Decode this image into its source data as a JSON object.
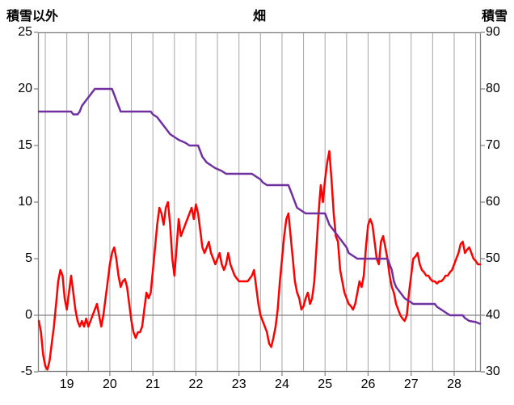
{
  "title": "畑",
  "left_axis": {
    "title": "積雪以外",
    "min": -5,
    "max": 25,
    "ticks": [
      25,
      20,
      15,
      10,
      5,
      0,
      -5
    ]
  },
  "right_axis": {
    "title": "積雪",
    "min": 30,
    "max": 90,
    "ticks": [
      90,
      80,
      70,
      60,
      50,
      40,
      30
    ]
  },
  "x_axis": {
    "min": 18.33,
    "max": 28.62,
    "grid_step": 0.5,
    "labels": [
      "19",
      "20",
      "21",
      "22",
      "23",
      "24",
      "25",
      "26",
      "27",
      "28"
    ],
    "label_values": [
      19,
      20,
      21,
      22,
      23,
      24,
      25,
      26,
      27,
      28
    ]
  },
  "colors": {
    "grid": "#a6a6a6",
    "border": "#808080",
    "zero_line": "#808080",
    "red_series": "#ff0000",
    "purple_series": "#7030a0"
  },
  "chart_data": {
    "type": "line",
    "title": "畑",
    "left_ylabel": "積雪以外",
    "right_ylabel": "積雪",
    "left_ylim": [
      -5,
      25
    ],
    "right_ylim": [
      30,
      90
    ],
    "xlim": [
      18.33,
      28.62
    ],
    "grid": "vertical-half-day",
    "legend": "none",
    "series": [
      {
        "name": "積雪以外",
        "axis": "left",
        "color": "#ff0000",
        "width": 2.5,
        "points": [
          [
            18.35,
            -0.5
          ],
          [
            18.4,
            -1.5
          ],
          [
            18.45,
            -3.5
          ],
          [
            18.5,
            -4.5
          ],
          [
            18.55,
            -4.8
          ],
          [
            18.6,
            -4
          ],
          [
            18.65,
            -2.5
          ],
          [
            18.7,
            -1
          ],
          [
            18.75,
            1
          ],
          [
            18.8,
            3
          ],
          [
            18.85,
            4
          ],
          [
            18.9,
            3.5
          ],
          [
            18.95,
            1.5
          ],
          [
            19.0,
            0.5
          ],
          [
            19.05,
            2
          ],
          [
            19.1,
            3.5
          ],
          [
            19.15,
            2
          ],
          [
            19.2,
            0.5
          ],
          [
            19.25,
            -0.5
          ],
          [
            19.3,
            -1
          ],
          [
            19.35,
            -0.5
          ],
          [
            19.4,
            -1
          ],
          [
            19.45,
            -0.3
          ],
          [
            19.5,
            -1
          ],
          [
            19.55,
            -0.5
          ],
          [
            19.6,
            0
          ],
          [
            19.65,
            0.5
          ],
          [
            19.7,
            1
          ],
          [
            19.75,
            0
          ],
          [
            19.8,
            -1
          ],
          [
            19.85,
            0
          ],
          [
            19.9,
            1.5
          ],
          [
            19.95,
            3
          ],
          [
            20.0,
            4.5
          ],
          [
            20.05,
            5.5
          ],
          [
            20.1,
            6
          ],
          [
            20.15,
            5
          ],
          [
            20.2,
            3.5
          ],
          [
            20.25,
            2.5
          ],
          [
            20.3,
            3
          ],
          [
            20.35,
            3.2
          ],
          [
            20.4,
            2.5
          ],
          [
            20.45,
            1
          ],
          [
            20.5,
            -0.5
          ],
          [
            20.55,
            -1.5
          ],
          [
            20.6,
            -2
          ],
          [
            20.65,
            -1.5
          ],
          [
            20.7,
            -1.5
          ],
          [
            20.75,
            -1
          ],
          [
            20.8,
            0.5
          ],
          [
            20.85,
            2
          ],
          [
            20.9,
            1.5
          ],
          [
            20.95,
            2
          ],
          [
            21.0,
            4
          ],
          [
            21.05,
            6
          ],
          [
            21.1,
            8
          ],
          [
            21.15,
            9.5
          ],
          [
            21.2,
            9
          ],
          [
            21.25,
            8
          ],
          [
            21.3,
            9.5
          ],
          [
            21.35,
            10
          ],
          [
            21.4,
            8
          ],
          [
            21.45,
            5
          ],
          [
            21.5,
            3.5
          ],
          [
            21.55,
            6
          ],
          [
            21.6,
            8.5
          ],
          [
            21.65,
            7
          ],
          [
            21.7,
            7.5
          ],
          [
            21.75,
            8
          ],
          [
            21.8,
            8.5
          ],
          [
            21.85,
            9
          ],
          [
            21.9,
            9.5
          ],
          [
            21.95,
            8.5
          ],
          [
            22.0,
            9.8
          ],
          [
            22.05,
            9
          ],
          [
            22.1,
            7.5
          ],
          [
            22.15,
            6
          ],
          [
            22.2,
            5.5
          ],
          [
            22.25,
            6
          ],
          [
            22.3,
            6.5
          ],
          [
            22.35,
            5.5
          ],
          [
            22.4,
            5
          ],
          [
            22.45,
            4.5
          ],
          [
            22.5,
            5
          ],
          [
            22.55,
            5.5
          ],
          [
            22.6,
            4.5
          ],
          [
            22.65,
            4
          ],
          [
            22.7,
            4.5
          ],
          [
            22.75,
            5.5
          ],
          [
            22.8,
            4.5
          ],
          [
            22.85,
            4
          ],
          [
            22.9,
            3.5
          ],
          [
            23.0,
            3
          ],
          [
            23.1,
            3
          ],
          [
            23.2,
            3
          ],
          [
            23.3,
            3.5
          ],
          [
            23.35,
            4
          ],
          [
            23.4,
            2.5
          ],
          [
            23.45,
            1
          ],
          [
            23.5,
            0
          ],
          [
            23.55,
            -0.5
          ],
          [
            23.6,
            -1
          ],
          [
            23.65,
            -1.5
          ],
          [
            23.7,
            -2.5
          ],
          [
            23.75,
            -2.8
          ],
          [
            23.8,
            -2
          ],
          [
            23.85,
            -1
          ],
          [
            23.9,
            0.5
          ],
          [
            23.95,
            3
          ],
          [
            24.0,
            5
          ],
          [
            24.05,
            7
          ],
          [
            24.1,
            8.5
          ],
          [
            24.15,
            9
          ],
          [
            24.2,
            7
          ],
          [
            24.25,
            5
          ],
          [
            24.3,
            3
          ],
          [
            24.35,
            2
          ],
          [
            24.4,
            1.5
          ],
          [
            24.45,
            0.5
          ],
          [
            24.5,
            0.8
          ],
          [
            24.55,
            1.5
          ],
          [
            24.6,
            2
          ],
          [
            24.65,
            1
          ],
          [
            24.7,
            1.5
          ],
          [
            24.75,
            3
          ],
          [
            24.8,
            6
          ],
          [
            24.85,
            9
          ],
          [
            24.9,
            11.5
          ],
          [
            24.95,
            10
          ],
          [
            25.0,
            12
          ],
          [
            25.05,
            13.5
          ],
          [
            25.1,
            14.5
          ],
          [
            25.15,
            12
          ],
          [
            25.2,
            9
          ],
          [
            25.25,
            7
          ],
          [
            25.3,
            6.5
          ],
          [
            25.35,
            4
          ],
          [
            25.4,
            3
          ],
          [
            25.45,
            2
          ],
          [
            25.5,
            1.5
          ],
          [
            25.55,
            1
          ],
          [
            25.6,
            0.8
          ],
          [
            25.65,
            0.5
          ],
          [
            25.7,
            1
          ],
          [
            25.75,
            2
          ],
          [
            25.8,
            3
          ],
          [
            25.85,
            2.5
          ],
          [
            25.9,
            3.5
          ],
          [
            25.95,
            6
          ],
          [
            26.0,
            8
          ],
          [
            26.05,
            8.5
          ],
          [
            26.1,
            8
          ],
          [
            26.15,
            6.5
          ],
          [
            26.2,
            5
          ],
          [
            26.25,
            4.5
          ],
          [
            26.3,
            6.5
          ],
          [
            26.35,
            7
          ],
          [
            26.4,
            6
          ],
          [
            26.45,
            5
          ],
          [
            26.5,
            3.5
          ],
          [
            26.55,
            2.5
          ],
          [
            26.6,
            2
          ],
          [
            26.65,
            1
          ],
          [
            26.7,
            0.5
          ],
          [
            26.75,
            0
          ],
          [
            26.8,
            -0.3
          ],
          [
            26.85,
            -0.5
          ],
          [
            26.9,
            0
          ],
          [
            26.95,
            2
          ],
          [
            27.0,
            3.5
          ],
          [
            27.05,
            5
          ],
          [
            27.1,
            5.2
          ],
          [
            27.15,
            5.5
          ],
          [
            27.2,
            4.5
          ],
          [
            27.25,
            4
          ],
          [
            27.3,
            3.8
          ],
          [
            27.35,
            3.5
          ],
          [
            27.4,
            3.5
          ],
          [
            27.45,
            3.2
          ],
          [
            27.5,
            3
          ],
          [
            27.55,
            3
          ],
          [
            27.6,
            2.8
          ],
          [
            27.65,
            3
          ],
          [
            27.7,
            3
          ],
          [
            27.75,
            3.2
          ],
          [
            27.8,
            3.5
          ],
          [
            27.85,
            3.5
          ],
          [
            27.9,
            3.8
          ],
          [
            27.95,
            4
          ],
          [
            28.0,
            4.5
          ],
          [
            28.05,
            5
          ],
          [
            28.1,
            5.5
          ],
          [
            28.15,
            6.3
          ],
          [
            28.2,
            6.5
          ],
          [
            28.25,
            5.5
          ],
          [
            28.3,
            5.8
          ],
          [
            28.35,
            6
          ],
          [
            28.4,
            5.5
          ],
          [
            28.45,
            5
          ],
          [
            28.5,
            4.8
          ],
          [
            28.55,
            4.5
          ],
          [
            28.6,
            4.5
          ]
        ]
      },
      {
        "name": "積雪",
        "axis": "right",
        "color": "#7030a0",
        "width": 2.5,
        "points": [
          [
            18.35,
            76
          ],
          [
            19.1,
            76
          ],
          [
            19.15,
            75.5
          ],
          [
            19.25,
            75.5
          ],
          [
            19.3,
            76
          ],
          [
            19.35,
            77
          ],
          [
            19.45,
            78
          ],
          [
            19.55,
            79
          ],
          [
            19.65,
            80
          ],
          [
            20.05,
            80
          ],
          [
            20.1,
            79
          ],
          [
            20.15,
            78
          ],
          [
            20.2,
            77
          ],
          [
            20.25,
            76
          ],
          [
            20.95,
            76
          ],
          [
            21.0,
            75.5
          ],
          [
            21.1,
            75
          ],
          [
            21.2,
            74
          ],
          [
            21.3,
            73
          ],
          [
            21.4,
            72
          ],
          [
            21.5,
            71.5
          ],
          [
            21.6,
            71
          ],
          [
            21.75,
            70.5
          ],
          [
            21.85,
            70
          ],
          [
            22.05,
            70
          ],
          [
            22.1,
            69
          ],
          [
            22.15,
            68
          ],
          [
            22.25,
            67
          ],
          [
            22.35,
            66.5
          ],
          [
            22.45,
            66
          ],
          [
            22.6,
            65.5
          ],
          [
            22.7,
            65
          ],
          [
            23.3,
            65
          ],
          [
            23.4,
            64.5
          ],
          [
            23.5,
            64
          ],
          [
            23.55,
            63.5
          ],
          [
            23.65,
            63
          ],
          [
            24.15,
            63
          ],
          [
            24.2,
            62
          ],
          [
            24.25,
            61
          ],
          [
            24.3,
            60
          ],
          [
            24.35,
            59
          ],
          [
            24.45,
            58.5
          ],
          [
            24.55,
            58
          ],
          [
            25.0,
            58
          ],
          [
            25.05,
            57
          ],
          [
            25.1,
            56
          ],
          [
            25.2,
            55
          ],
          [
            25.3,
            54
          ],
          [
            25.4,
            53
          ],
          [
            25.5,
            52
          ],
          [
            25.55,
            51
          ],
          [
            25.65,
            50.5
          ],
          [
            25.75,
            50
          ],
          [
            26.45,
            50
          ],
          [
            26.5,
            49
          ],
          [
            26.55,
            48
          ],
          [
            26.6,
            46
          ],
          [
            26.65,
            45
          ],
          [
            26.75,
            44
          ],
          [
            26.85,
            43
          ],
          [
            26.95,
            42.5
          ],
          [
            27.05,
            42
          ],
          [
            27.55,
            42
          ],
          [
            27.6,
            41.5
          ],
          [
            27.7,
            41
          ],
          [
            27.8,
            40.5
          ],
          [
            27.9,
            40
          ],
          [
            28.2,
            40
          ],
          [
            28.25,
            39.5
          ],
          [
            28.35,
            39
          ],
          [
            28.5,
            38.8
          ],
          [
            28.6,
            38.5
          ]
        ]
      }
    ]
  }
}
